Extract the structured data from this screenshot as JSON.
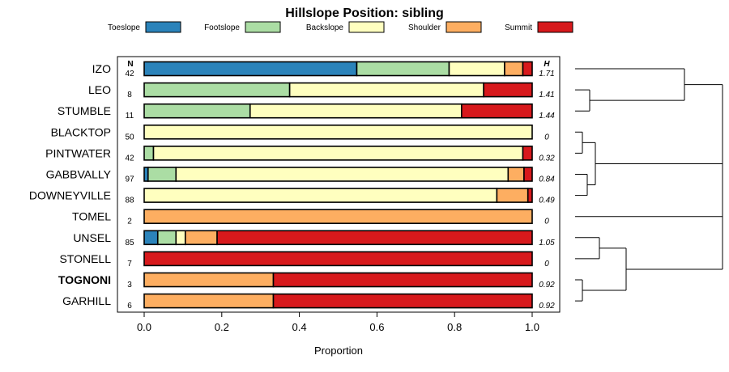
{
  "chart_data": {
    "type": "bar",
    "orientation": "horizontal",
    "stacked": true,
    "title": "Hillslope Position: sibling",
    "xlabel": "Proportion",
    "ylabel": "",
    "xlim": [
      -0.08,
      1.08
    ],
    "xticks": [
      0.0,
      0.2,
      0.4,
      0.6,
      0.8,
      1.0
    ],
    "xtick_labels": [
      "0.0",
      "0.2",
      "0.4",
      "0.6",
      "0.8",
      "1.0"
    ],
    "n_header": "N",
    "h_header": "H",
    "legend": [
      {
        "name": "Toeslope",
        "color": "#2b83ba"
      },
      {
        "name": "Footslope",
        "color": "#abdda4"
      },
      {
        "name": "Backslope",
        "color": "#ffffbf"
      },
      {
        "name": "Shoulder",
        "color": "#fdae61"
      },
      {
        "name": "Summit",
        "color": "#d7191c"
      }
    ],
    "categories": [
      "IZO",
      "LEO",
      "STUMBLE",
      "BLACKTOP",
      "PINTWATER",
      "GABBVALLY",
      "DOWNEYVILLE",
      "TOMEL",
      "UNSEL",
      "STONELL",
      "TOGNONI",
      "GARHILL"
    ],
    "highlight": "TOGNONI",
    "n": [
      "42",
      "8",
      "11",
      "50",
      "42",
      "97",
      "88",
      "2",
      "85",
      "7",
      "3",
      "6"
    ],
    "h": [
      "1.71",
      "1.41",
      "1.44",
      "0",
      "0.32",
      "0.84",
      "0.49",
      "0",
      "1.05",
      "0",
      "0.92",
      "0.92"
    ],
    "series": [
      {
        "name": "Toeslope",
        "values": [
          0.548,
          0.0,
          0.0,
          0.0,
          0.0,
          0.01,
          0.0,
          0.0,
          0.035,
          0.0,
          0.0,
          0.0
        ]
      },
      {
        "name": "Footslope",
        "values": [
          0.238,
          0.375,
          0.273,
          0.0,
          0.024,
          0.072,
          0.0,
          0.0,
          0.047,
          0.0,
          0.0,
          0.0
        ]
      },
      {
        "name": "Backslope",
        "values": [
          0.143,
          0.5,
          0.545,
          1.0,
          0.952,
          0.856,
          0.909,
          0.0,
          0.024,
          0.0,
          0.0,
          0.0
        ]
      },
      {
        "name": "Shoulder",
        "values": [
          0.047,
          0.0,
          0.0,
          0.0,
          0.0,
          0.041,
          0.08,
          1.0,
          0.082,
          0.0,
          0.333,
          0.333
        ]
      },
      {
        "name": "Summit",
        "values": [
          0.024,
          0.125,
          0.182,
          0.0,
          0.024,
          0.021,
          0.011,
          0.0,
          0.812,
          1.0,
          0.667,
          0.667
        ]
      }
    ]
  }
}
